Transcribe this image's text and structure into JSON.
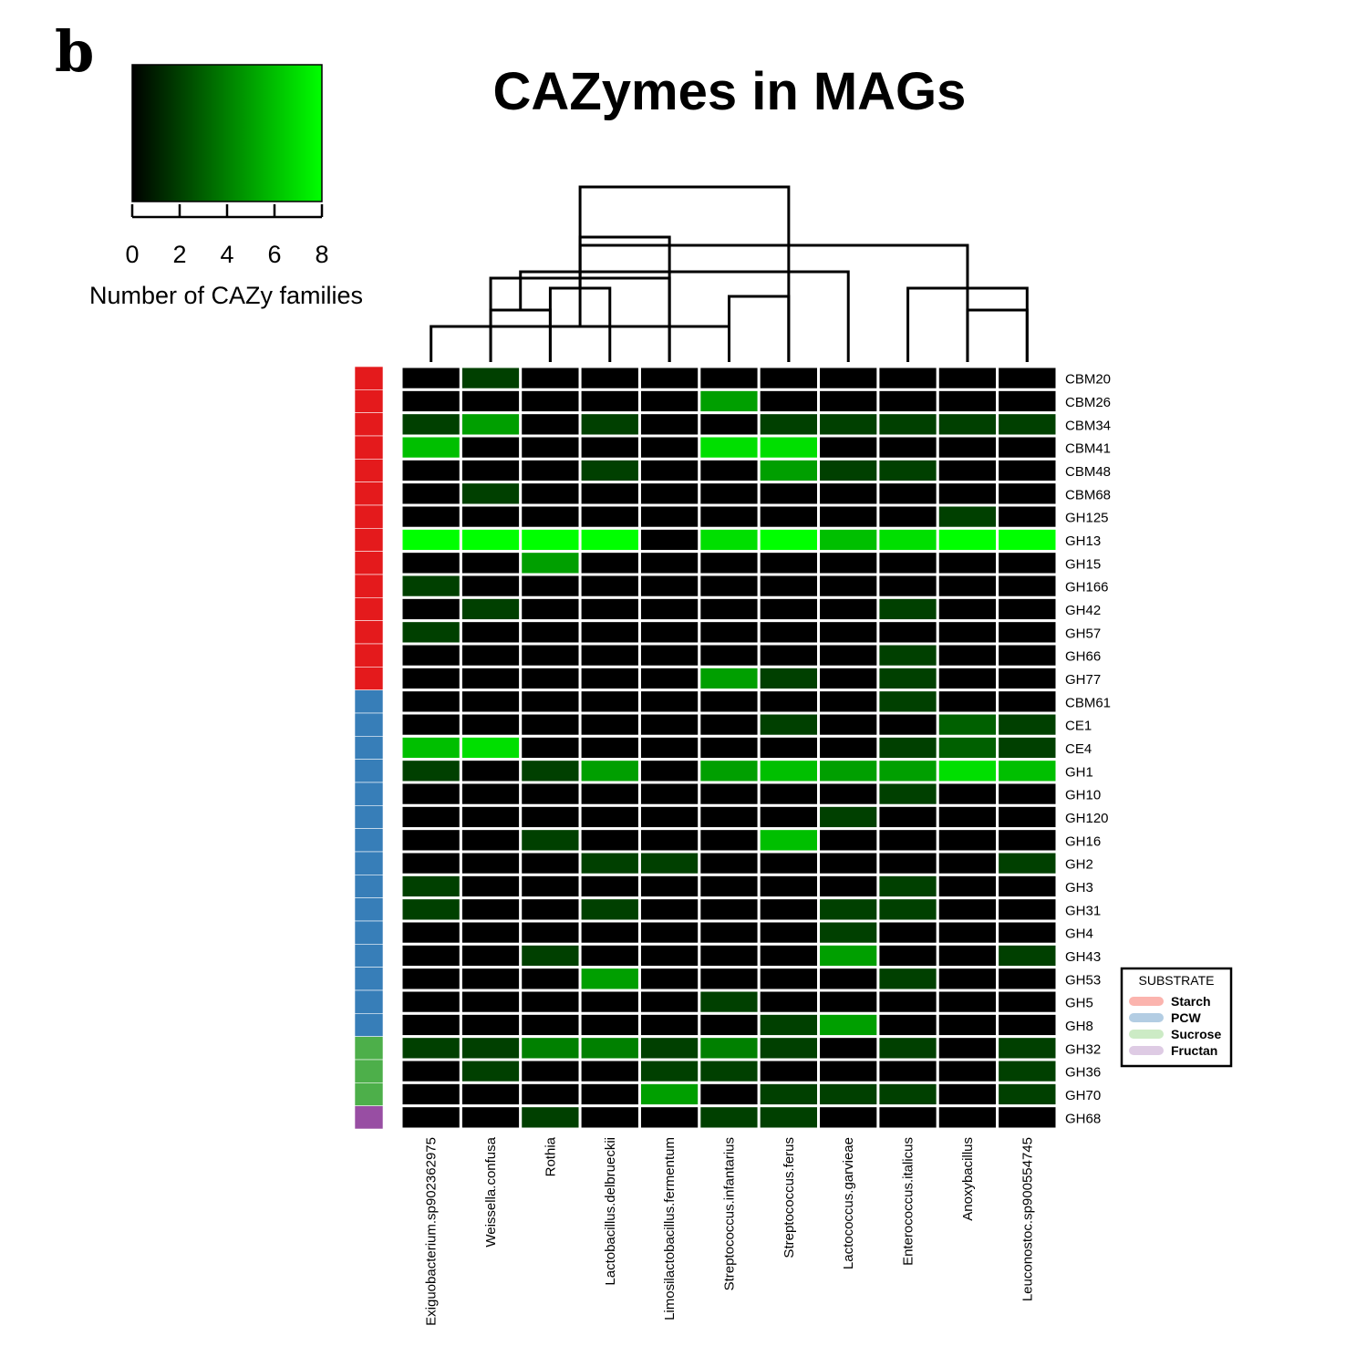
{
  "panel_label": "b",
  "chart_data": {
    "type": "heatmap",
    "title": "CAZymes in MAGs",
    "colorbar": {
      "label": "Number of CAZy families",
      "ticks": [
        0,
        2,
        4,
        6,
        8
      ],
      "range": [
        0,
        8
      ],
      "color_low": "#000000",
      "color_high": "#00ff00"
    },
    "columns": [
      "Exiguobacterium.sp902362975",
      "Weissella.confusa",
      "Rothia",
      "Lactobacillus.delbrueckii",
      "Limosilactobacillus.fermentum",
      "Streptococcus.infantarius",
      "Streptococcus.ferus",
      "Lactococcus.garvieae",
      "Enterococcus.italicus",
      "Anoxybacillus",
      "Leuconostoc.sp900554745"
    ],
    "rows": [
      {
        "name": "CBM20",
        "substrate": "Starch",
        "values": [
          0,
          2,
          0,
          0,
          0,
          0,
          0,
          0,
          0,
          0,
          0
        ]
      },
      {
        "name": "CBM26",
        "substrate": "Starch",
        "values": [
          0,
          0,
          0,
          0,
          0,
          5,
          0,
          0,
          0,
          0,
          0
        ]
      },
      {
        "name": "CBM34",
        "substrate": "Starch",
        "values": [
          2,
          5,
          0,
          2,
          0,
          0,
          2,
          2,
          2,
          2,
          2
        ]
      },
      {
        "name": "CBM41",
        "substrate": "Starch",
        "values": [
          6,
          0,
          0,
          0,
          0,
          7,
          7,
          0,
          0,
          0,
          0
        ]
      },
      {
        "name": "CBM48",
        "substrate": "Starch",
        "values": [
          0,
          0,
          0,
          2,
          0,
          0,
          5,
          2,
          2,
          0,
          0
        ]
      },
      {
        "name": "CBM68",
        "substrate": "Starch",
        "values": [
          0,
          2,
          0,
          0,
          0,
          0,
          0,
          0,
          0,
          0,
          0
        ]
      },
      {
        "name": "GH125",
        "substrate": "Starch",
        "values": [
          0,
          0,
          0,
          0,
          0,
          0,
          0,
          0,
          0,
          2,
          0
        ]
      },
      {
        "name": "GH13",
        "substrate": "Starch",
        "values": [
          8,
          8,
          8,
          8,
          0,
          7,
          8,
          6,
          7,
          8,
          8
        ]
      },
      {
        "name": "GH15",
        "substrate": "Starch",
        "values": [
          0,
          0,
          5,
          0,
          0,
          0,
          0,
          0,
          0,
          0,
          0
        ]
      },
      {
        "name": "GH166",
        "substrate": "Starch",
        "values": [
          2,
          0,
          0,
          0,
          0,
          0,
          0,
          0,
          0,
          0,
          0
        ]
      },
      {
        "name": "GH42",
        "substrate": "Starch",
        "values": [
          0,
          2,
          0,
          0,
          0,
          0,
          0,
          0,
          2,
          0,
          0
        ]
      },
      {
        "name": "GH57",
        "substrate": "Starch",
        "values": [
          2,
          0,
          0,
          0,
          0,
          0,
          0,
          0,
          0,
          0,
          0
        ]
      },
      {
        "name": "GH66",
        "substrate": "Starch",
        "values": [
          0,
          0,
          0,
          0,
          0,
          0,
          0,
          0,
          2,
          0,
          0
        ]
      },
      {
        "name": "GH77",
        "substrate": "Starch",
        "values": [
          0,
          0,
          0,
          0,
          0,
          5,
          2,
          0,
          2,
          0,
          0
        ]
      },
      {
        "name": "CBM61",
        "substrate": "PCW",
        "values": [
          0,
          0,
          0,
          0,
          0,
          0,
          0,
          0,
          2,
          0,
          0
        ]
      },
      {
        "name": "CE1",
        "substrate": "PCW",
        "values": [
          0,
          0,
          0,
          0,
          0,
          0,
          2,
          0,
          0,
          3,
          2
        ]
      },
      {
        "name": "CE4",
        "substrate": "PCW",
        "values": [
          6,
          7,
          0,
          0,
          0,
          0,
          0,
          0,
          2,
          3,
          2
        ]
      },
      {
        "name": "GH1",
        "substrate": "PCW",
        "values": [
          2,
          0,
          2,
          5,
          0,
          5,
          6,
          5,
          5,
          7,
          6
        ]
      },
      {
        "name": "GH10",
        "substrate": "PCW",
        "values": [
          0,
          0,
          0,
          0,
          0,
          0,
          0,
          0,
          2,
          0,
          0
        ]
      },
      {
        "name": "GH120",
        "substrate": "PCW",
        "values": [
          0,
          0,
          0,
          0,
          0,
          0,
          0,
          2,
          0,
          0,
          0
        ]
      },
      {
        "name": "GH16",
        "substrate": "PCW",
        "values": [
          0,
          0,
          2,
          0,
          0,
          0,
          6,
          0,
          0,
          0,
          0
        ]
      },
      {
        "name": "GH2",
        "substrate": "PCW",
        "values": [
          0,
          0,
          0,
          2,
          2,
          0,
          0,
          0,
          0,
          0,
          2
        ]
      },
      {
        "name": "GH3",
        "substrate": "PCW",
        "values": [
          2,
          0,
          0,
          0,
          0,
          0,
          0,
          0,
          2,
          0,
          0
        ]
      },
      {
        "name": "GH31",
        "substrate": "PCW",
        "values": [
          2,
          0,
          0,
          2,
          0,
          0,
          0,
          2,
          2,
          0,
          0
        ]
      },
      {
        "name": "GH4",
        "substrate": "PCW",
        "values": [
          0,
          0,
          0,
          0,
          0,
          0,
          0,
          2,
          0,
          0,
          0
        ]
      },
      {
        "name": "GH43",
        "substrate": "PCW",
        "values": [
          0,
          0,
          2,
          0,
          0,
          0,
          0,
          5,
          0,
          0,
          2
        ]
      },
      {
        "name": "GH53",
        "substrate": "PCW",
        "values": [
          0,
          0,
          0,
          5,
          0,
          0,
          0,
          0,
          2,
          0,
          0
        ]
      },
      {
        "name": "GH5",
        "substrate": "PCW",
        "values": [
          0,
          0,
          0,
          0,
          0,
          2,
          0,
          0,
          0,
          0,
          0
        ]
      },
      {
        "name": "GH8",
        "substrate": "PCW",
        "values": [
          0,
          0,
          0,
          0,
          0,
          0,
          2,
          5,
          0,
          0,
          0
        ]
      },
      {
        "name": "GH32",
        "substrate": "Sucrose",
        "values": [
          2,
          2,
          4,
          4,
          2,
          4,
          2,
          0,
          2,
          0,
          2
        ]
      },
      {
        "name": "GH36",
        "substrate": "Sucrose",
        "values": [
          0,
          2,
          0,
          0,
          2,
          2,
          0,
          0,
          0,
          0,
          2
        ]
      },
      {
        "name": "GH70",
        "substrate": "Sucrose",
        "values": [
          0,
          0,
          0,
          0,
          5,
          0,
          2,
          2,
          2,
          0,
          2
        ]
      },
      {
        "name": "GH68",
        "substrate": "Fructan",
        "values": [
          0,
          0,
          2,
          0,
          0,
          2,
          2,
          0,
          0,
          0,
          0
        ]
      }
    ],
    "substrate_colors": {
      "Starch": "#e41a1c",
      "PCW": "#377eb8",
      "Sucrose": "#4daf4a",
      "Fructan": "#984ea3"
    },
    "legend": {
      "title": "SUBSTRATE",
      "placement": "right",
      "entries": [
        {
          "label": "Starch",
          "color": "#fbb4ae"
        },
        {
          "label": "PCW",
          "color": "#b3cde3"
        },
        {
          "label": "Sucrose",
          "color": "#ccebc5"
        },
        {
          "label": "Fructan",
          "color": "#decbe4"
        }
      ]
    },
    "column_dendrogram": [
      [
        1,
        2,
        "m1"
      ],
      [
        2,
        3,
        "m2"
      ],
      [
        1,
        4,
        "m3"
      ],
      [
        0,
        5,
        "m4"
      ],
      [
        9,
        10,
        "m5"
      ],
      [
        8,
        10,
        "m6"
      ],
      [
        7,
        11,
        "m7"
      ],
      [
        5,
        6,
        "m8"
      ],
      [
        9,
        12,
        "m9"
      ],
      [
        4,
        13,
        "m10"
      ],
      [
        6,
        14,
        "m11"
      ]
    ]
  }
}
